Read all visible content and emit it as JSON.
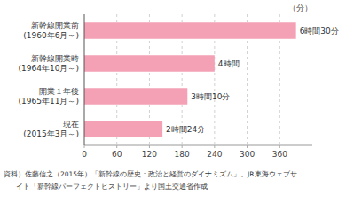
{
  "chart_data": {
    "type": "bar",
    "orientation": "horizontal",
    "categories": [
      "新幹線開業前\n(1960年6月～)",
      "新幹線開業時\n(1964年10月～)",
      "開業１年後\n(1965年11月～)",
      "現在\n(2015年3月～)"
    ],
    "values": [
      390,
      240,
      190,
      144
    ],
    "value_labels": [
      "6時間30分",
      "4時間",
      "3時間10分",
      "2時間24分"
    ],
    "data_labels": true,
    "color": "#f4a0b5",
    "xlim": [
      0,
      420
    ],
    "xticks": [
      0,
      60,
      120,
      180,
      240,
      300,
      360
    ],
    "x_label": "（分）",
    "grid": true,
    "annotations": [
      "資料）佐藤信之（2015年）「新幹線の歴史：政治と経営のダイナミズム」、JR東海ウェブサ",
      "イト「新幹線パーフェクトヒストリー」より国土交通省作成"
    ]
  }
}
